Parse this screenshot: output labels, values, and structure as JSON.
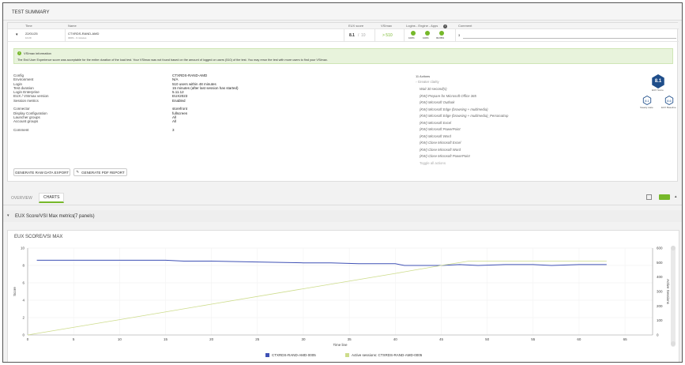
{
  "header": {
    "title": "TEST SUMMARY"
  },
  "table": {
    "columns": {
      "time": "Time",
      "name": "Name",
      "eux": "EUX score",
      "vsimax": "VSImax",
      "logins": "Logins - Engine - Apps",
      "comment": "Comment"
    },
    "row": {
      "expand_glyph": "▾",
      "date": "22/01/25",
      "time": "10:29",
      "name": "CTXRDS-RAND-AMD",
      "subname": "300% - 9 minutes",
      "eux_score": "8.1",
      "eux_sep": "/",
      "eux_max": "10",
      "vsimax": "> 510",
      "logins": [
        {
          "label": "100%"
        },
        {
          "label": "100%"
        },
        {
          "label": "99.88%"
        }
      ],
      "comment": "3"
    }
  },
  "info": {
    "title": "VSImax information",
    "icon": "info-icon",
    "message": "The End User Experience score was acceptable for the entire duration of the load test. Your VSImax was not found based on the amount of logged on users (510) of the test. You may rerun the test with more users to find your VSImax."
  },
  "details": [
    {
      "key": "Config",
      "value": "CTXRDS-RAND-AMD"
    },
    {
      "key": "Environment",
      "value": "N/A"
    },
    {
      "key": "Login",
      "value": "510 users within 48 minutes"
    },
    {
      "key": "Test duration",
      "value": "15 minutes (after last session has started)"
    },
    {
      "key": "Login Enterprise",
      "value": "5.11.12"
    },
    {
      "key": "EUX / VSImax version",
      "value": "EUX2023"
    },
    {
      "key": "Session metrics",
      "value": "Enabled"
    },
    {
      "key": "",
      "value": ""
    },
    {
      "key": "Connector",
      "value": "storefront"
    },
    {
      "key": "Display Configuration",
      "value": "fullscreen"
    },
    {
      "key": "Launcher groups",
      "value": "All"
    },
    {
      "key": "Account groups",
      "value": "All"
    },
    {
      "key": "",
      "value": ""
    },
    {
      "key": "Comment",
      "value": "3"
    }
  ],
  "actions": {
    "title": "11 Actions",
    "collapse_label": "Greater clarity",
    "items": [
      "Wait 30 second(s)",
      "(KW) Prepare for Microsoft Office 365",
      "(KW) Microsoft Outlook",
      "(KW) Microsoft Edge (browsing + multimedia)",
      "(KW) Microsoft Edge (browsing + multimedia)_PersonaExp",
      "(KW) Microsoft Excel",
      "(KW) Microsoft PowerPoint",
      "(KW) Microsoft Word",
      "(KW) Close Microsoft Excel",
      "(KW) Close Microsoft Word",
      "(KW) Close Microsoft PowerPoint"
    ],
    "toggle_label": "Toggle all actions"
  },
  "scores": {
    "eux": {
      "value": "8.1",
      "label": "EUX Score"
    },
    "steady": {
      "value": "8.1",
      "label": "Steady state"
    },
    "baseline": {
      "value": "8.6",
      "label": "EUX Baseline"
    }
  },
  "buttons": {
    "raw_export": "GENERATE RAW DATA EXPORT",
    "pdf_report": "GENERATE PDF REPORT"
  },
  "tabs": {
    "overview": "OVERVIEW",
    "charts": "CHARTS"
  },
  "metrics": {
    "title": "EUX Score/VSI Max metrics",
    "count": "(7 panels)"
  },
  "colors": {
    "eux_line": "#3f51b5",
    "sessions_line": "#cddc8b",
    "accent": "#76b82a",
    "hex": "#1f4e8a"
  },
  "chart_data": {
    "type": "line",
    "title": "EUX SCORE/VSI MAX",
    "xlabel": "Time line",
    "ylabel": "Score",
    "y2label": "Active Sessions",
    "xlim": [
      0,
      68
    ],
    "ylim": [
      0,
      10
    ],
    "y2lim": [
      0,
      600
    ],
    "xticks": [
      0,
      5,
      10,
      15,
      20,
      25,
      30,
      35,
      40,
      45,
      50,
      55,
      60,
      65
    ],
    "yticks": [
      0,
      2,
      4,
      6,
      8,
      10
    ],
    "y2ticks": [
      0,
      100,
      200,
      300,
      400,
      500,
      600
    ],
    "series": [
      {
        "name": "CTXRDS-RAND-AMD-0005",
        "axis": "left",
        "color": "#3f51b5",
        "x": [
          1,
          5,
          10,
          15,
          17,
          20,
          25,
          30,
          33,
          36,
          40,
          41,
          45,
          47,
          49,
          52,
          55,
          57,
          60,
          63
        ],
        "y": [
          8.6,
          8.6,
          8.6,
          8.6,
          8.5,
          8.5,
          8.4,
          8.3,
          8.3,
          8.2,
          8.2,
          8.0,
          8.0,
          8.1,
          8.0,
          8.1,
          8.1,
          8.0,
          8.1,
          8.1
        ]
      },
      {
        "name": "Active sessions: CTXRDS-RAND-AMD-0005",
        "axis": "right",
        "color": "#cddc8b",
        "x": [
          0,
          10,
          20,
          30,
          40,
          45,
          48,
          55,
          63
        ],
        "y": [
          0,
          106,
          213,
          319,
          425,
          480,
          510,
          510,
          510
        ]
      }
    ]
  }
}
